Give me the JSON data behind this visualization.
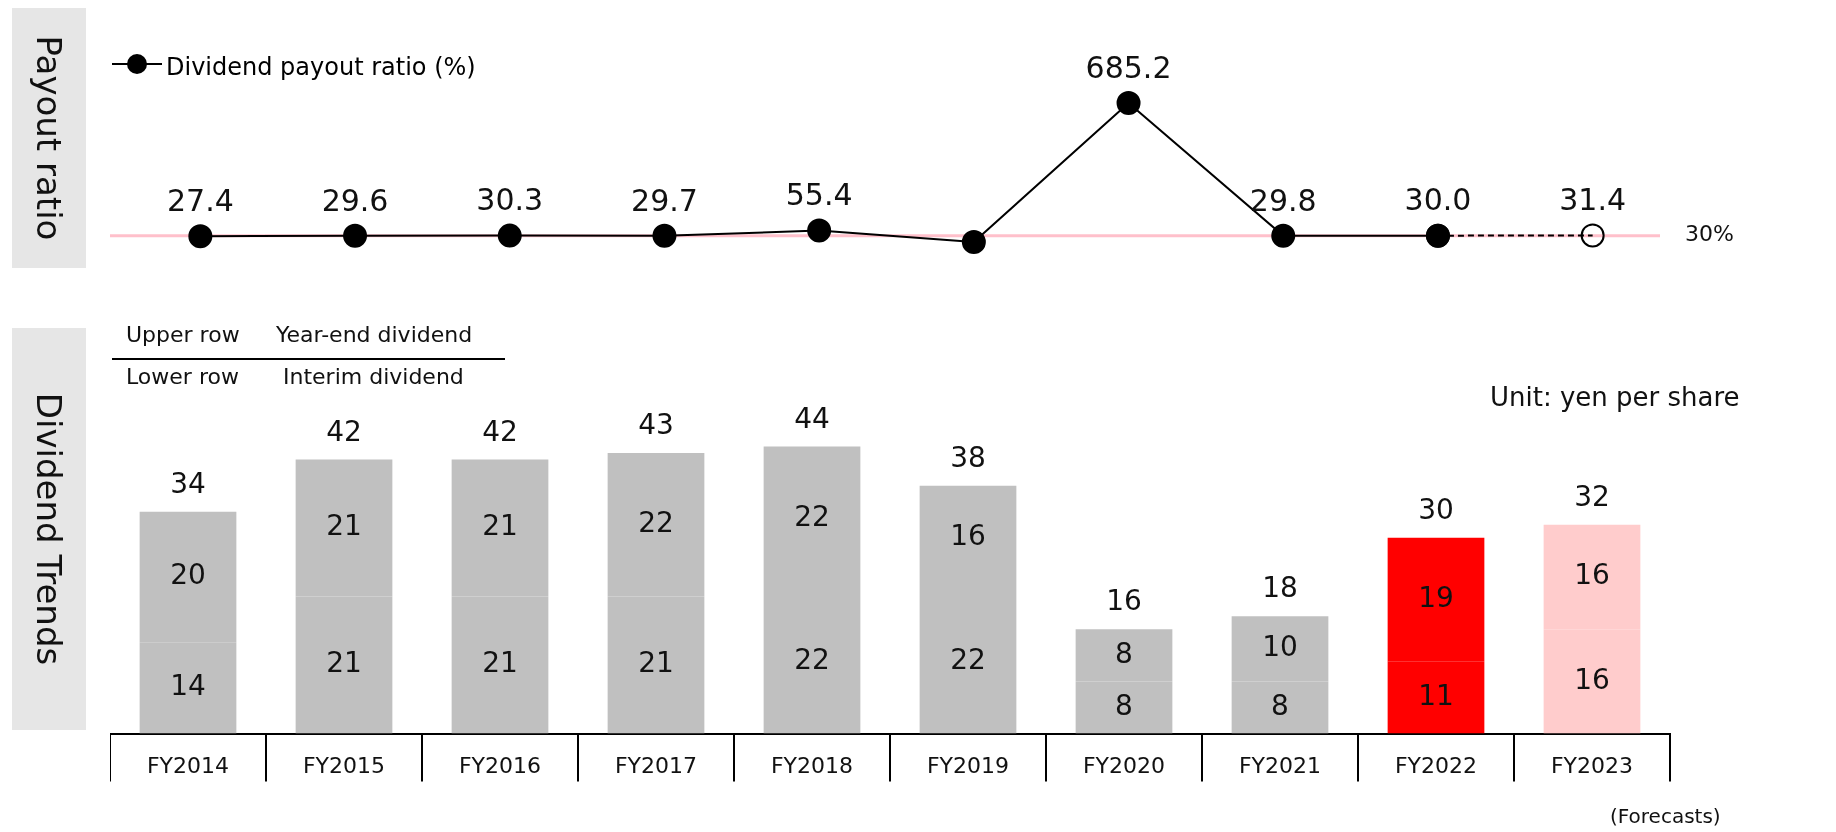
{
  "chart_data": [
    {
      "type": "line",
      "ylabel": "Payout ratio",
      "categories": [
        null,
        null,
        null,
        null,
        null,
        null,
        null,
        null,
        null,
        null
      ],
      "tick_labels": false,
      "legend": "top left",
      "marker": "circle",
      "series": [
        {
          "name": "Dividend payout ratio (%)",
          "color": "#000000",
          "line_style": "solid",
          "values": [
            27.4,
            29.6,
            30.3,
            29.7,
            55.4,
            -1,
            685.2,
            29.8,
            30.0,
            null
          ],
          "value_labels": [
            "27.4",
            "29.6",
            "30.3",
            "29.7",
            "55.4",
            null,
            "685.2",
            "29.8",
            "30.0",
            null
          ]
        },
        {
          "color": "#000000",
          "line_style": "dashed",
          "values": [
            null,
            null,
            null,
            null,
            null,
            null,
            null,
            null,
            30.0,
            31.4
          ],
          "value_labels": [
            null,
            null,
            null,
            null,
            null,
            null,
            null,
            null,
            null,
            "31.4"
          ]
        }
      ],
      "ref_lines": [
        {
          "axis": "y",
          "value": 30,
          "label": "30%",
          "color": "#ffc0cb"
        }
      ]
    },
    {
      "type": "bar",
      "ylabel": "Dividend Trends",
      "categories": [
        "FY2014",
        "FY2015",
        "FY2016",
        "FY2017",
        "FY2018",
        "FY2019",
        "FY2020",
        "FY2021",
        "FY2022",
        "FY2023"
      ],
      "stacked": true,
      "data_labels": true,
      "tick_labels": "x",
      "series": [
        {
          "values": [
            14,
            21,
            21,
            21,
            22,
            22,
            8,
            8,
            11,
            16
          ],
          "colors": [
            "#c0c0c0",
            "#c0c0c0",
            "#c0c0c0",
            "#c0c0c0",
            "#c0c0c0",
            "#c0c0c0",
            "#c0c0c0",
            "#c0c0c0",
            "#ff0000",
            "#ffcccc"
          ]
        },
        {
          "values": [
            20,
            21,
            21,
            22,
            22,
            16,
            8,
            10,
            19,
            16
          ],
          "colors": [
            "#c0c0c0",
            "#c0c0c0",
            "#c0c0c0",
            "#c0c0c0",
            "#c0c0c0",
            "#c0c0c0",
            "#c0c0c0",
            "#c0c0c0",
            "#ff0000",
            "#ffcccc"
          ]
        }
      ],
      "totals": [
        "34",
        "42",
        "42",
        "43",
        "44",
        "38",
        "16",
        "18",
        "30",
        "32"
      ],
      "annotations": [
        "Upper row",
        "Year-end dividend",
        "Lower row",
        "Interim dividend",
        "Unit: yen per share",
        "(Forecasts)"
      ]
    }
  ]
}
